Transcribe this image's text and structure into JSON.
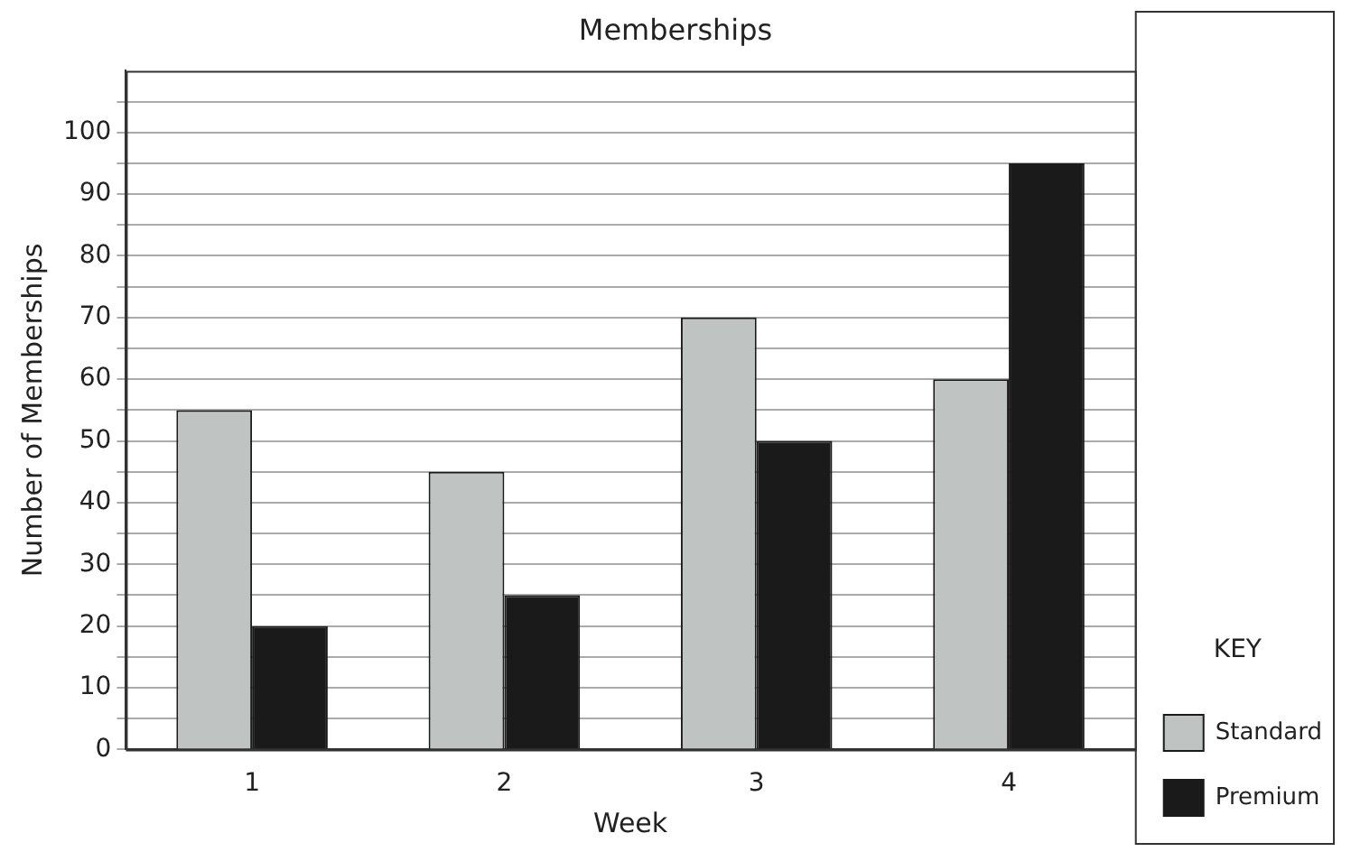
{
  "chart_data": {
    "type": "bar",
    "title": "Memberships",
    "xlabel": "Week",
    "ylabel": "Number of Memberships",
    "legend_title": "KEY",
    "categories": [
      "1",
      "2",
      "3",
      "4"
    ],
    "series": [
      {
        "name": "Standard",
        "color": "#bfc3c1",
        "values": [
          55,
          45,
          70,
          60
        ]
      },
      {
        "name": "Premium",
        "color": "#1a1a1a",
        "values": [
          20,
          25,
          50,
          95
        ]
      }
    ],
    "ylim": [
      0,
      110
    ],
    "yticks": [
      0,
      {
        "value": 5,
        "label": null
      },
      10,
      {
        "value": 15,
        "label": null
      },
      20,
      {
        "value": 25,
        "label": null
      },
      30,
      {
        "value": 35,
        "label": null
      },
      40,
      {
        "value": 45,
        "label": null
      },
      50,
      {
        "value": 55,
        "label": null
      },
      60,
      {
        "value": 65,
        "label": null
      },
      70,
      {
        "value": 75,
        "label": null
      },
      80,
      {
        "value": 85,
        "label": null
      },
      90,
      {
        "value": 95,
        "label": null
      },
      100,
      {
        "value": 105,
        "label": null
      }
    ],
    "grid": "y",
    "legend": "bottom right"
  }
}
